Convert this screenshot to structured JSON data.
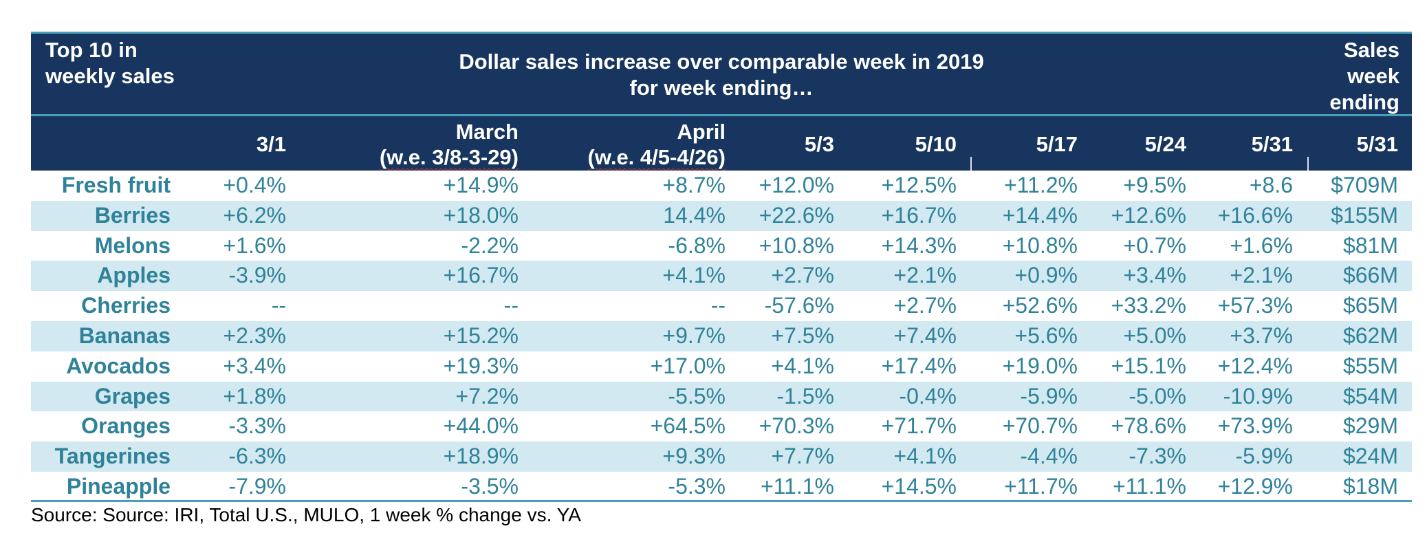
{
  "header": {
    "left_label": "Top 10 in weekly sales",
    "center_title_line1": "Dollar sales increase over comparable week in 2019",
    "center_title_line2": "for week ending…",
    "right_label": "Sales week ending"
  },
  "columns": [
    {
      "line1": "",
      "line2": "3/1"
    },
    {
      "line1": "March",
      "line2": "(w.e. 3/8-3-29)"
    },
    {
      "line1": "April",
      "line2": "(w.e. 4/5-4/26)"
    },
    {
      "line1": "",
      "line2": "5/3"
    },
    {
      "line1": "",
      "line2": "5/10"
    },
    {
      "line1": "",
      "line2": "5/17"
    },
    {
      "line1": "",
      "line2": "5/24"
    },
    {
      "line1": "",
      "line2": "5/31"
    },
    {
      "line1": "",
      "line2": "5/31"
    }
  ],
  "rows": [
    {
      "name": "Fresh fruit",
      "values": [
        "+0.4%",
        "+14.9%",
        "+8.7%",
        "+12.0%",
        "+12.5%",
        "+11.2%",
        "+9.5%",
        "+8.6",
        "$709M"
      ]
    },
    {
      "name": "Berries",
      "values": [
        "+6.2%",
        "+18.0%",
        "14.4%",
        "+22.6%",
        "+16.7%",
        "+14.4%",
        "+12.6%",
        "+16.6%",
        "$155M"
      ]
    },
    {
      "name": "Melons",
      "values": [
        "+1.6%",
        "-2.2%",
        "-6.8%",
        "+10.8%",
        "+14.3%",
        "+10.8%",
        "+0.7%",
        "+1.6%",
        "$81M"
      ]
    },
    {
      "name": "Apples",
      "values": [
        "-3.9%",
        "+16.7%",
        "+4.1%",
        "+2.7%",
        "+2.1%",
        "+0.9%",
        "+3.4%",
        "+2.1%",
        "$66M"
      ]
    },
    {
      "name": "Cherries",
      "values": [
        "--",
        "--",
        "--",
        "-57.6%",
        "+2.7%",
        "+52.6%",
        "+33.2%",
        "+57.3%",
        "$65M"
      ]
    },
    {
      "name": "Bananas",
      "values": [
        "+2.3%",
        "+15.2%",
        "+9.7%",
        "+7.5%",
        "+7.4%",
        "+5.6%",
        "+5.0%",
        "+3.7%",
        "$62M"
      ]
    },
    {
      "name": "Avocados",
      "values": [
        "+3.4%",
        "+19.3%",
        "+17.0%",
        "+4.1%",
        "+17.4%",
        "+19.0%",
        "+15.1%",
        "+12.4%",
        "$55M"
      ]
    },
    {
      "name": "Grapes",
      "values": [
        "+1.8%",
        "+7.2%",
        "-5.5%",
        "-1.5%",
        "-0.4%",
        "-5.9%",
        "-5.0%",
        "-10.9%",
        "$54M"
      ]
    },
    {
      "name": "Oranges",
      "values": [
        "-3.3%",
        "+44.0%",
        "+64.5%",
        "+70.3%",
        "+71.7%",
        "+70.7%",
        "+78.6%",
        "+73.9%",
        "$29M"
      ]
    },
    {
      "name": "Tangerines",
      "values": [
        "-6.3%",
        "+18.9%",
        "+9.3%",
        "+7.7%",
        "+4.1%",
        "-4.4%",
        "-7.3%",
        "-5.9%",
        "$24M"
      ]
    },
    {
      "name": "Pineapple",
      "values": [
        "-7.9%",
        "-3.5%",
        "-5.3%",
        "+11.1%",
        "+14.5%",
        "+11.7%",
        "+11.1%",
        "+12.9%",
        "$18M"
      ]
    }
  ],
  "source": "Source: Source: IRI, Total U.S., MULO, 1 week % change vs. YA",
  "colors": {
    "header_bg": "#17355e",
    "accent_rule": "#4aa0bb",
    "row_alt_bg": "#d2e9f1",
    "body_text": "#2f8299"
  }
}
